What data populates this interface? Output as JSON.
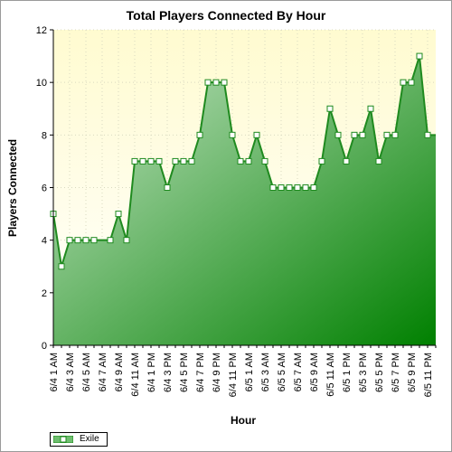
{
  "chart_data": {
    "type": "area",
    "title": "Total Players Connected By Hour",
    "xlabel": "Hour",
    "ylabel": "Players Connected",
    "ylim": [
      0,
      12
    ],
    "yticks": [
      0,
      2,
      4,
      6,
      8,
      10,
      12
    ],
    "x": [
      "6/4 1 AM",
      "6/4 2 AM",
      "6/4 3 AM",
      "6/4 4 AM",
      "6/4 5 AM",
      "6/4 6 AM",
      "6/4 7 AM",
      "6/4 8 AM",
      "6/4 9 AM",
      "6/4 10 AM",
      "6/4 11 AM",
      "6/4 12 PM",
      "6/4 1 PM",
      "6/4 2 PM",
      "6/4 3 PM",
      "6/4 4 PM",
      "6/4 5 PM",
      "6/4 6 PM",
      "6/4 7 PM",
      "6/4 8 PM",
      "6/4 9 PM",
      "6/4 10 PM",
      "6/4 11 PM",
      "6/5 12 AM",
      "6/5 1 AM",
      "6/5 2 AM",
      "6/5 3 AM",
      "6/5 4 AM",
      "6/5 5 AM",
      "6/5 6 AM",
      "6/5 7 AM",
      "6/5 8 AM",
      "6/5 9 AM",
      "6/5 10 AM",
      "6/5 11 AM",
      "6/5 12 PM",
      "6/5 1 PM",
      "6/5 2 PM",
      "6/5 3 PM",
      "6/5 4 PM",
      "6/5 5 PM",
      "6/5 6 PM",
      "6/5 7 PM",
      "6/5 8 PM",
      "6/5 9 PM",
      "6/5 10 PM",
      "6/5 11 PM",
      "6/6 12 AM"
    ],
    "tick_labels": [
      "6/4 1 AM",
      "6/4 3 AM",
      "6/4 5 AM",
      "6/4 7 AM",
      "6/4 9 AM",
      "6/4 11 AM",
      "6/4 1 PM",
      "6/4 3 PM",
      "6/4 5 PM",
      "6/4 7 PM",
      "6/4 9 PM",
      "6/4 11 PM",
      "6/5 1 AM",
      "6/5 3 AM",
      "6/5 5 AM",
      "6/5 7 AM",
      "6/5 9 AM",
      "6/5 11 AM",
      "6/5 1 PM",
      "6/5 3 PM",
      "6/5 5 PM",
      "6/5 7 PM",
      "6/5 9 PM",
      "6/5 11 PM"
    ],
    "series": [
      {
        "name": "Exile",
        "values": [
          5,
          3,
          4,
          4,
          4,
          4,
          null,
          4,
          5,
          4,
          7,
          7,
          7,
          7,
          6,
          7,
          7,
          7,
          8,
          10,
          10,
          10,
          8,
          7,
          7,
          8,
          7,
          6,
          6,
          6,
          6,
          6,
          6,
          7,
          9,
          8,
          7,
          8,
          8,
          9,
          7,
          8,
          8,
          10,
          10,
          11,
          8,
          null
        ]
      }
    ],
    "colors": {
      "line": "#1f8a1f",
      "fill_light": "#c8e6c8",
      "fill_dark": "#008000",
      "plot_bg_top": "#fffbd0",
      "plot_bg_bottom": "#ffffff"
    },
    "grid": true,
    "legend_position": "bottom-left"
  }
}
